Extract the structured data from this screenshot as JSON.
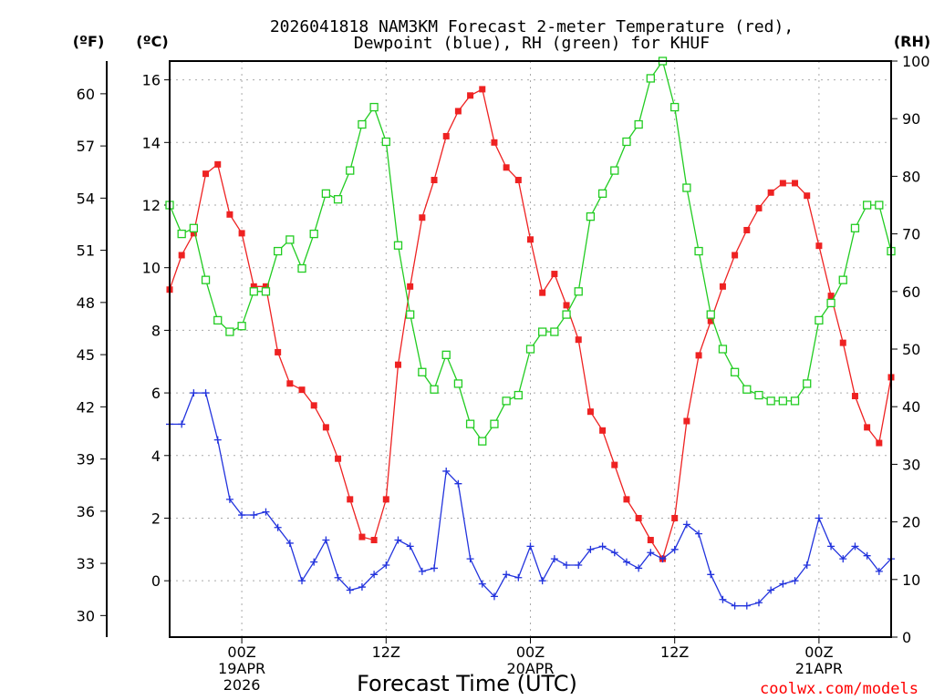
{
  "chart_data": {
    "type": "line",
    "title_line1": "2026041818 NAM3KM Forecast 2-meter Temperature (red),",
    "title_line2": "Dewpoint (blue), RH (green) for KHUF",
    "xlabel": "Forecast Time (UTC)",
    "credit": "coolwx.com/models",
    "left_axis_c": {
      "unit": "(ºC)",
      "ticks": [
        0,
        2,
        4,
        6,
        8,
        10,
        12,
        14,
        16
      ],
      "range": [
        -1.8,
        16.6
      ]
    },
    "left_axis_f": {
      "unit": "(ºF)",
      "ticks": [
        30,
        33,
        36,
        39,
        42,
        45,
        48,
        51,
        54,
        57,
        60
      ]
    },
    "right_axis_rh": {
      "unit": "(RH)",
      "ticks": [
        0,
        10,
        20,
        30,
        40,
        50,
        60,
        70,
        80,
        90,
        100
      ],
      "range": [
        0,
        100
      ]
    },
    "x_range_hours": [
      0,
      60
    ],
    "x_ticks": [
      {
        "hour": 6,
        "line1": "00Z",
        "line2": "19APR",
        "line3": "2026"
      },
      {
        "hour": 18,
        "line1": "12Z",
        "line2": "",
        "line3": ""
      },
      {
        "hour": 30,
        "line1": "00Z",
        "line2": "20APR",
        "line3": ""
      },
      {
        "hour": 42,
        "line1": "12Z",
        "line2": "",
        "line3": ""
      },
      {
        "hour": 54,
        "line1": "00Z",
        "line2": "21APR",
        "line3": ""
      }
    ],
    "series": [
      {
        "name": "Temperature",
        "unit": "C",
        "color": "#ee2222",
        "marker": "filled-square",
        "values": [
          9.3,
          10.4,
          11.1,
          13.0,
          13.3,
          11.7,
          11.1,
          9.4,
          9.4,
          7.3,
          6.3,
          6.1,
          5.6,
          4.9,
          3.9,
          2.6,
          1.4,
          1.3,
          2.6,
          6.9,
          9.4,
          11.6,
          12.8,
          14.2,
          15.0,
          15.5,
          15.7,
          14.0,
          13.2,
          12.8,
          10.9,
          9.2,
          9.8,
          8.8,
          7.7,
          5.4,
          4.8,
          3.7,
          2.6,
          2.0,
          1.3,
          0.7,
          2.0,
          5.1,
          7.2,
          8.3,
          9.4,
          10.4,
          11.2,
          11.9,
          12.4,
          12.7,
          12.7,
          12.3,
          10.7,
          9.1,
          7.6,
          5.9,
          4.9,
          4.4,
          6.5
        ]
      },
      {
        "name": "Dewpoint",
        "unit": "C",
        "color": "#2233dd",
        "marker": "plus",
        "values": [
          5.0,
          5.0,
          6.0,
          6.0,
          4.5,
          2.6,
          2.1,
          2.1,
          2.2,
          1.7,
          1.2,
          0.0,
          0.6,
          1.3,
          0.1,
          -0.3,
          -0.2,
          0.2,
          0.5,
          1.3,
          1.1,
          0.3,
          0.4,
          3.5,
          3.1,
          0.7,
          -0.1,
          -0.5,
          0.2,
          0.1,
          1.1,
          0.0,
          0.7,
          0.5,
          0.5,
          1.0,
          1.1,
          0.9,
          0.6,
          0.4,
          0.9,
          0.7,
          1.0,
          1.8,
          1.5,
          0.2,
          -0.6,
          -0.8,
          -0.8,
          -0.7,
          -0.3,
          -0.1,
          0.0,
          0.5,
          2.0,
          1.1,
          0.7,
          1.1,
          0.8,
          0.3,
          0.7
        ]
      },
      {
        "name": "RH",
        "unit": "%",
        "color": "#22cc22",
        "marker": "open-square",
        "values": [
          75,
          70,
          71,
          62,
          55,
          53,
          54,
          60,
          60,
          67,
          69,
          64,
          70,
          77,
          76,
          81,
          89,
          92,
          86,
          68,
          56,
          46,
          43,
          49,
          44,
          37,
          34,
          37,
          41,
          42,
          50,
          53,
          53,
          56,
          60,
          73,
          77,
          81,
          86,
          89,
          97,
          100,
          92,
          78,
          67,
          56,
          50,
          46,
          43,
          42,
          41,
          41,
          41,
          44,
          55,
          58,
          62,
          71,
          75,
          75,
          67
        ]
      }
    ]
  }
}
